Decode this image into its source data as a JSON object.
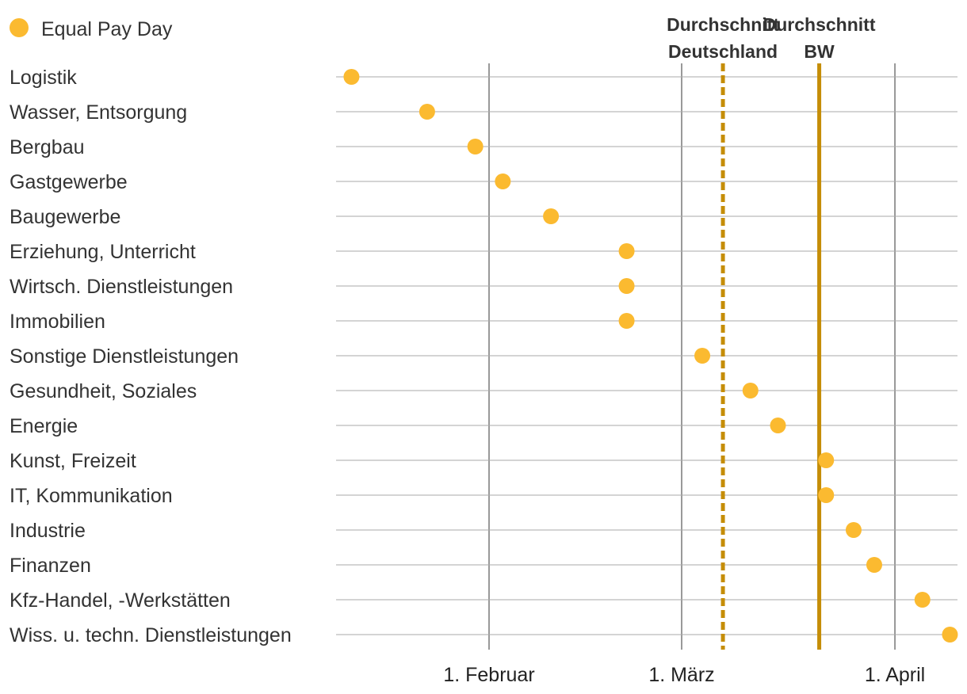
{
  "chart_data": {
    "type": "scatter",
    "title": "",
    "xlabel": "",
    "ylabel": "",
    "x_unit": "day of year",
    "xlim": [
      11,
      97
    ],
    "legend": {
      "position": "top-left",
      "label": "Equal Pay Day",
      "color": "#FBBA30"
    },
    "x_ticks": [
      {
        "value": 32,
        "label": "1. Februar"
      },
      {
        "value": 60,
        "label": "1. März"
      },
      {
        "value": 91,
        "label": "1. April"
      }
    ],
    "reference_lines": [
      {
        "name": "Durchschnitt Deutschland",
        "label_lines": [
          "Durchschnitt",
          "Deutschland"
        ],
        "value": 66,
        "style": "dashed",
        "color": "#C58D07"
      },
      {
        "name": "Durchschnitt BW",
        "label_lines": [
          "Durchschnitt",
          "BW"
        ],
        "value": 80,
        "style": "solid",
        "color": "#C58D07"
      }
    ],
    "categories": [
      "Logistik",
      "Wasser, Entsorgung",
      "Bergbau",
      "Gastgewerbe",
      "Baugewerbe",
      "Erziehung, Unterricht",
      "Wirtsch. Dienstleistungen",
      "Immobilien",
      "Sonstige Dienstleistungen",
      "Gesundheit, Soziales",
      "Energie",
      "Kunst, Freizeit",
      "IT, Kommunikation",
      "Industrie",
      "Finanzen",
      "Kfz-Handel, -Werkstätten",
      "Wiss. u. techn. Dienstleistungen"
    ],
    "series": [
      {
        "name": "Equal Pay Day",
        "color": "#FBBA30",
        "values": [
          12,
          23,
          30,
          34,
          41,
          52,
          52,
          52,
          63,
          70,
          74,
          81,
          81,
          85,
          88,
          95,
          99
        ]
      }
    ]
  }
}
